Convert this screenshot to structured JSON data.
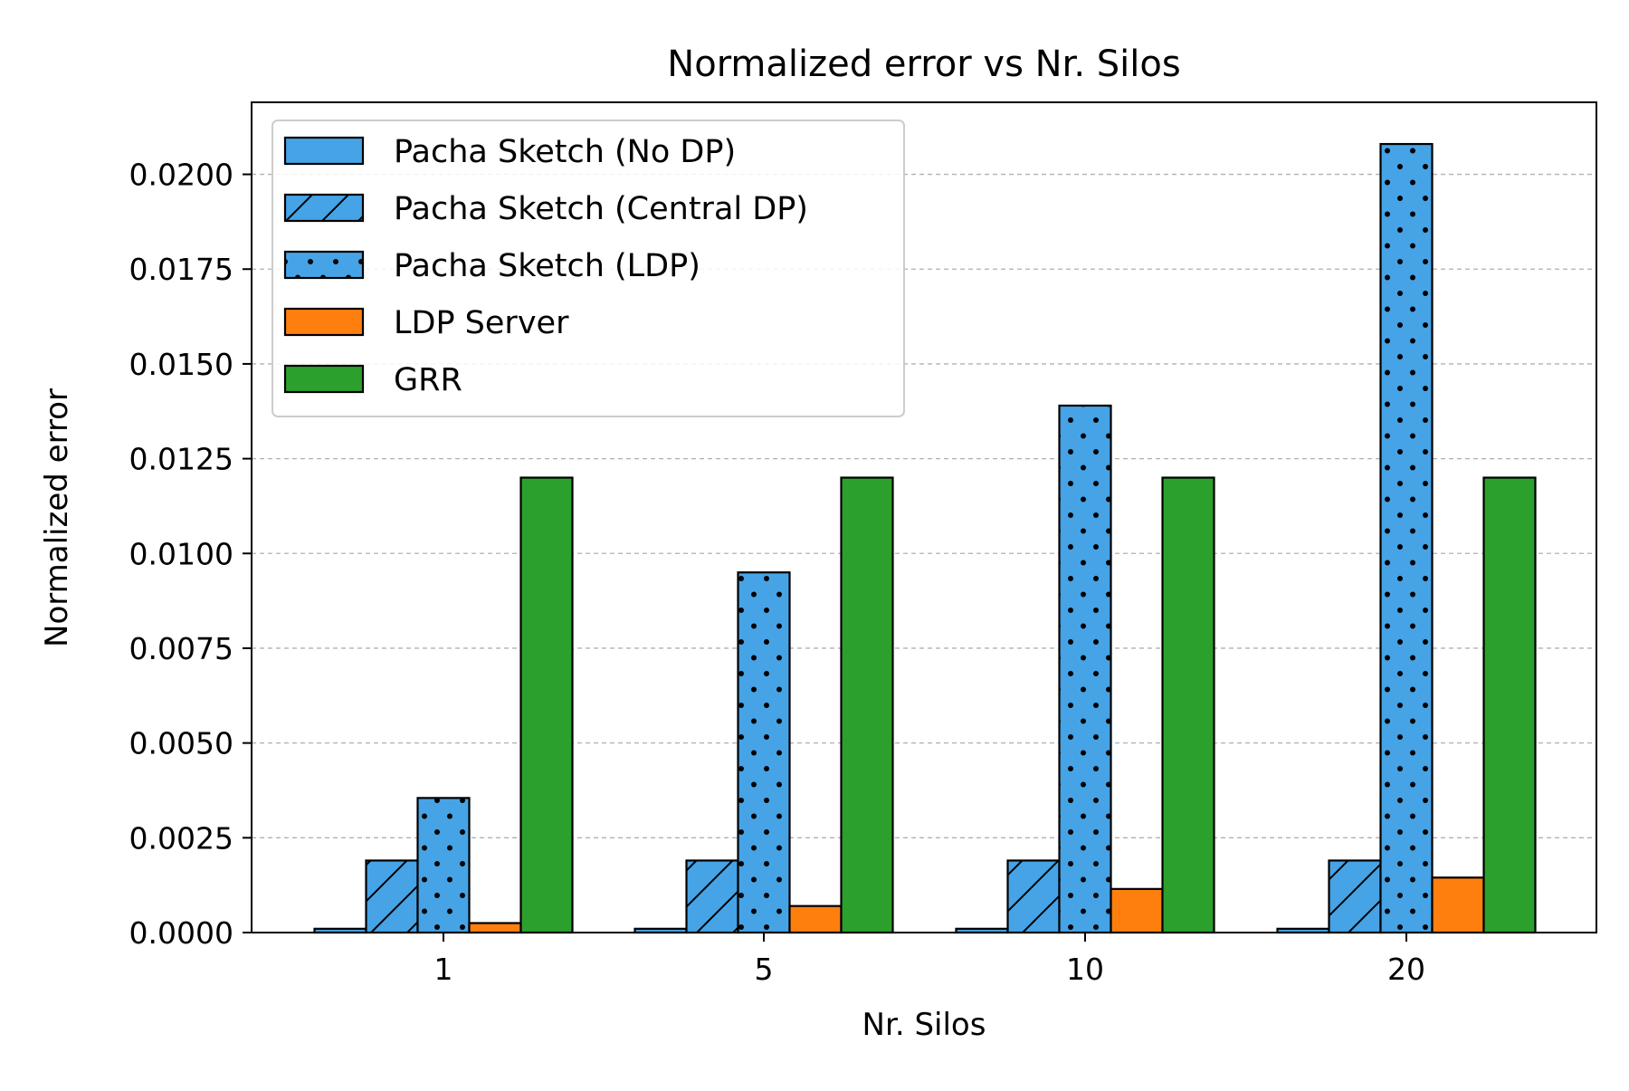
{
  "chart_data": {
    "type": "bar",
    "title": "Normalized error vs Nr. Silos",
    "xlabel": "Nr. Silos",
    "ylabel": "Normalized error",
    "categories": [
      "1",
      "5",
      "10",
      "20"
    ],
    "ylim": [
      0,
      0.0219
    ],
    "yticks": [
      "0.0000",
      "0.0025",
      "0.0050",
      "0.0075",
      "0.0100",
      "0.0125",
      "0.0150",
      "0.0175",
      "0.0200"
    ],
    "grid": "y-dashed",
    "legend_position": "top-left",
    "series": [
      {
        "name": "Pacha Sketch (No DP)",
        "values": [
          0.0001,
          0.0001,
          0.0001,
          0.0001
        ],
        "color": "#46a3e6",
        "hatch": "none"
      },
      {
        "name": "Pacha Sketch (Central DP)",
        "values": [
          0.0019,
          0.0019,
          0.0019,
          0.0019
        ],
        "color": "#46a3e6",
        "hatch": "diagonal"
      },
      {
        "name": "Pacha Sketch (LDP)",
        "values": [
          0.00355,
          0.0095,
          0.0139,
          0.0208
        ],
        "color": "#46a3e6",
        "hatch": "dots"
      },
      {
        "name": "LDP Server",
        "values": [
          0.00025,
          0.0007,
          0.00115,
          0.00145
        ],
        "color": "#ff7f0e",
        "hatch": "none"
      },
      {
        "name": "GRR",
        "values": [
          0.012,
          0.012,
          0.012,
          0.012
        ],
        "color": "#2ca02c",
        "hatch": "none"
      }
    ]
  }
}
